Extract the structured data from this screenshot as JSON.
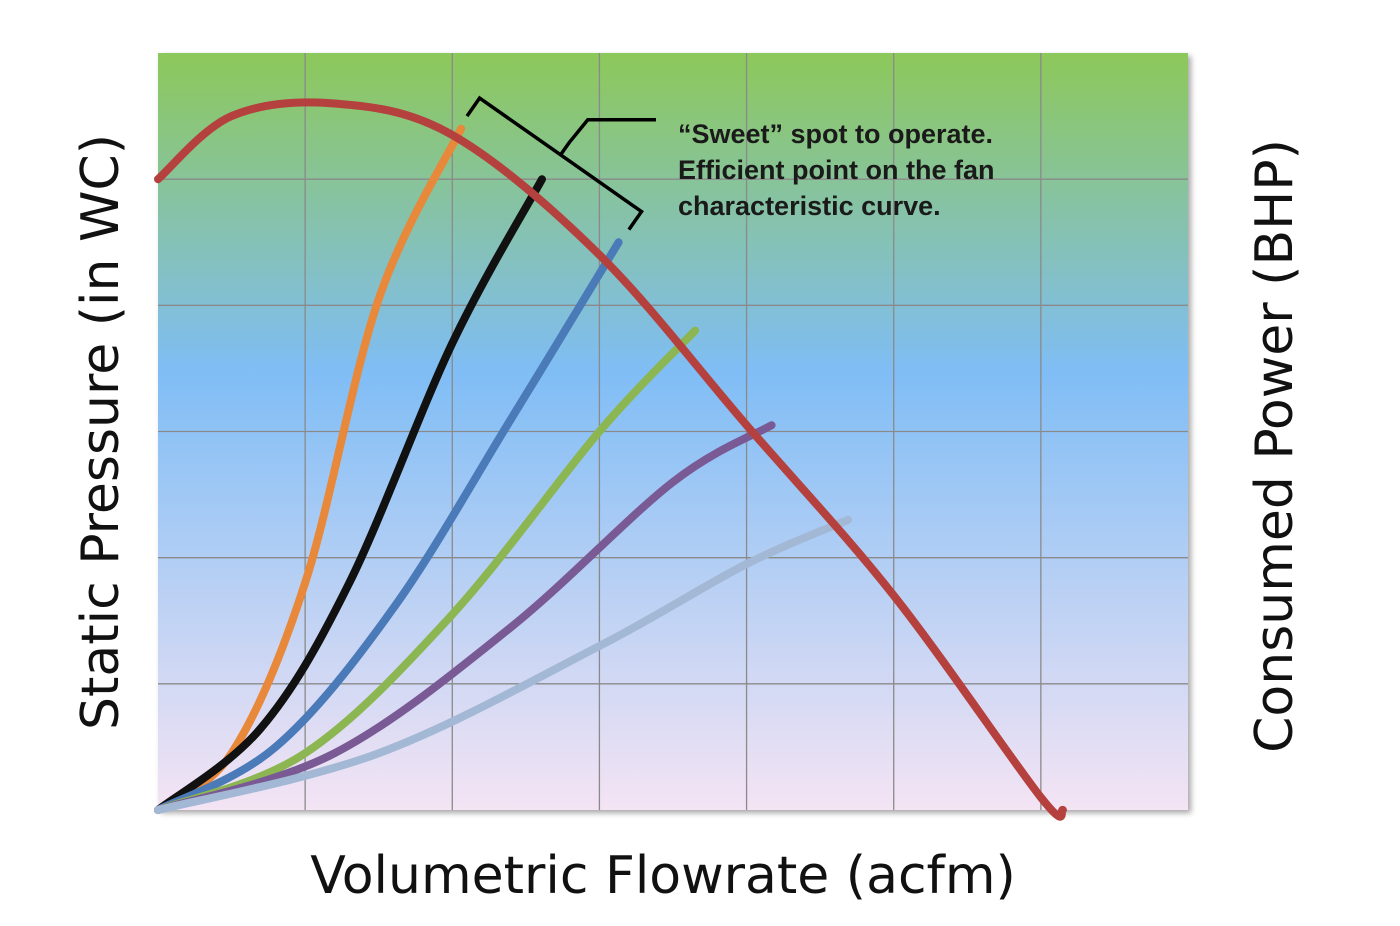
{
  "chart_data": {
    "type": "line",
    "title": "",
    "xlabel": "Volumetric Flowrate (acfm)",
    "ylabel": "Static Pressure (in WC)",
    "y2label": "Consumed Power (BHP)",
    "xlim": [
      0,
      7
    ],
    "ylim": [
      0,
      6
    ],
    "grid": true,
    "tick_labels_shown": false,
    "background_gradient": [
      "#8dc85a",
      "#7fbdf5",
      "#f4e4f4"
    ],
    "fan_curve": {
      "color": "#b5413e",
      "x": [
        0,
        0.5,
        1.2,
        2.0,
        3.0,
        4.0,
        5.0,
        6.0,
        6.15
      ],
      "y": [
        5.0,
        5.5,
        5.6,
        5.35,
        4.4,
        3.05,
        1.7,
        0.1,
        0
      ]
    },
    "power_curves": [
      {
        "color": "#e8883a",
        "x": [
          0,
          0.5,
          1.0,
          1.5,
          2.06
        ],
        "y": [
          0,
          0.45,
          1.8,
          4.05,
          5.4
        ]
      },
      {
        "color": "#111111",
        "x": [
          0,
          0.7,
          1.3,
          2.0,
          2.61
        ],
        "y": [
          0,
          0.65,
          1.8,
          3.7,
          5.0
        ]
      },
      {
        "color": "#4a7ab8",
        "x": [
          0,
          0.8,
          1.6,
          2.4,
          3.13
        ],
        "y": [
          0,
          0.5,
          1.6,
          3.1,
          4.5
        ]
      },
      {
        "color": "#8cb651",
        "x": [
          0,
          1.0,
          2.0,
          3.0,
          3.65
        ],
        "y": [
          0,
          0.45,
          1.55,
          3.0,
          3.8
        ]
      },
      {
        "color": "#7a5a94",
        "x": [
          0,
          1.2,
          2.4,
          3.5,
          4.17
        ],
        "y": [
          0,
          0.45,
          1.45,
          2.6,
          3.05
        ]
      },
      {
        "color": "#a3b8d4",
        "x": [
          0,
          1.5,
          3.0,
          4.0,
          4.69
        ],
        "y": [
          0,
          0.45,
          1.3,
          1.95,
          2.3
        ]
      }
    ],
    "annotation": {
      "lines": [
        "“Sweet” spot to operate.",
        "Efficient point on the fan",
        "characteristic curve."
      ],
      "bracket_start": [
        2.1,
        5.5
      ],
      "bracket_end": [
        3.2,
        4.6
      ]
    }
  }
}
